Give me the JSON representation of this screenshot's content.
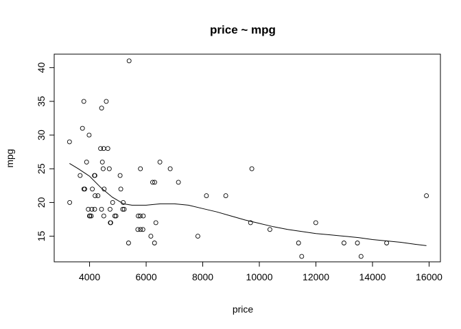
{
  "chart_data": {
    "type": "scatter",
    "title": "price ~ mpg",
    "xlabel": "price",
    "ylabel": "mpg",
    "xlim": [
      2750,
      16400
    ],
    "ylim": [
      11.2,
      42
    ],
    "x_ticks": [
      4000,
      6000,
      8000,
      10000,
      12000,
      14000,
      16000
    ],
    "y_ticks": [
      15,
      20,
      25,
      30,
      35,
      40
    ],
    "grid": false,
    "legend": "none",
    "colors": {
      "points": "#000000",
      "line": "#000000",
      "frame": "#000000",
      "background": "#ffffff"
    },
    "points": [
      {
        "x": 3291,
        "y": 29
      },
      {
        "x": 3299,
        "y": 20
      },
      {
        "x": 3667,
        "y": 24
      },
      {
        "x": 3748,
        "y": 31
      },
      {
        "x": 3798,
        "y": 35
      },
      {
        "x": 3799,
        "y": 22
      },
      {
        "x": 3829,
        "y": 22
      },
      {
        "x": 3895,
        "y": 26
      },
      {
        "x": 3955,
        "y": 19
      },
      {
        "x": 3984,
        "y": 30
      },
      {
        "x": 3995,
        "y": 18
      },
      {
        "x": 4010,
        "y": 18
      },
      {
        "x": 4060,
        "y": 18
      },
      {
        "x": 4082,
        "y": 19
      },
      {
        "x": 4099,
        "y": 22
      },
      {
        "x": 4172,
        "y": 24
      },
      {
        "x": 4181,
        "y": 19
      },
      {
        "x": 4187,
        "y": 24
      },
      {
        "x": 4195,
        "y": 21
      },
      {
        "x": 4296,
        "y": 21
      },
      {
        "x": 4389,
        "y": 28
      },
      {
        "x": 4424,
        "y": 19
      },
      {
        "x": 4425,
        "y": 34
      },
      {
        "x": 4453,
        "y": 26
      },
      {
        "x": 4482,
        "y": 25
      },
      {
        "x": 4499,
        "y": 28
      },
      {
        "x": 4504,
        "y": 18
      },
      {
        "x": 4516,
        "y": 22
      },
      {
        "x": 4589,
        "y": 35
      },
      {
        "x": 4647,
        "y": 28
      },
      {
        "x": 4697,
        "y": 25
      },
      {
        "x": 4723,
        "y": 19
      },
      {
        "x": 4733,
        "y": 17
      },
      {
        "x": 4749,
        "y": 17
      },
      {
        "x": 4816,
        "y": 20
      },
      {
        "x": 4890,
        "y": 18
      },
      {
        "x": 4934,
        "y": 18
      },
      {
        "x": 5079,
        "y": 24
      },
      {
        "x": 5104,
        "y": 22
      },
      {
        "x": 5172,
        "y": 19
      },
      {
        "x": 5189,
        "y": 20
      },
      {
        "x": 5222,
        "y": 19
      },
      {
        "x": 5379,
        "y": 14
      },
      {
        "x": 5397,
        "y": 41
      },
      {
        "x": 5705,
        "y": 16
      },
      {
        "x": 5719,
        "y": 18
      },
      {
        "x": 5788,
        "y": 18
      },
      {
        "x": 5798,
        "y": 25
      },
      {
        "x": 5799,
        "y": 16
      },
      {
        "x": 5886,
        "y": 16
      },
      {
        "x": 5899,
        "y": 18
      },
      {
        "x": 6165,
        "y": 15
      },
      {
        "x": 6229,
        "y": 23
      },
      {
        "x": 6295,
        "y": 14
      },
      {
        "x": 6303,
        "y": 23
      },
      {
        "x": 6342,
        "y": 17
      },
      {
        "x": 6486,
        "y": 26
      },
      {
        "x": 6850,
        "y": 25
      },
      {
        "x": 7140,
        "y": 23
      },
      {
        "x": 7827,
        "y": 15
      },
      {
        "x": 8129,
        "y": 21
      },
      {
        "x": 8814,
        "y": 21
      },
      {
        "x": 9690,
        "y": 17
      },
      {
        "x": 9735,
        "y": 25
      },
      {
        "x": 10372,
        "y": 16
      },
      {
        "x": 11385,
        "y": 14
      },
      {
        "x": 11497,
        "y": 12
      },
      {
        "x": 11995,
        "y": 17
      },
      {
        "x": 12990,
        "y": 14
      },
      {
        "x": 13466,
        "y": 14
      },
      {
        "x": 13594,
        "y": 12
      },
      {
        "x": 14500,
        "y": 14
      },
      {
        "x": 15906,
        "y": 21
      }
    ],
    "smooth_line": [
      {
        "x": 3291,
        "y": 25.8
      },
      {
        "x": 3600,
        "y": 25.0
      },
      {
        "x": 4000,
        "y": 23.9
      },
      {
        "x": 4400,
        "y": 22.2
      },
      {
        "x": 4800,
        "y": 20.8
      },
      {
        "x": 5200,
        "y": 19.8
      },
      {
        "x": 5500,
        "y": 19.6
      },
      {
        "x": 6000,
        "y": 19.6
      },
      {
        "x": 6500,
        "y": 19.8
      },
      {
        "x": 7000,
        "y": 19.8
      },
      {
        "x": 7500,
        "y": 19.6
      },
      {
        "x": 8000,
        "y": 19.1
      },
      {
        "x": 8500,
        "y": 18.6
      },
      {
        "x": 9000,
        "y": 18.0
      },
      {
        "x": 9500,
        "y": 17.4
      },
      {
        "x": 10000,
        "y": 16.9
      },
      {
        "x": 10500,
        "y": 16.4
      },
      {
        "x": 11000,
        "y": 16.0
      },
      {
        "x": 11500,
        "y": 15.7
      },
      {
        "x": 12000,
        "y": 15.4
      },
      {
        "x": 12500,
        "y": 15.2
      },
      {
        "x": 13000,
        "y": 15.0
      },
      {
        "x": 13500,
        "y": 14.8
      },
      {
        "x": 14000,
        "y": 14.5
      },
      {
        "x": 14500,
        "y": 14.3
      },
      {
        "x": 15000,
        "y": 14.1
      },
      {
        "x": 15500,
        "y": 13.8
      },
      {
        "x": 15906,
        "y": 13.6
      }
    ]
  }
}
